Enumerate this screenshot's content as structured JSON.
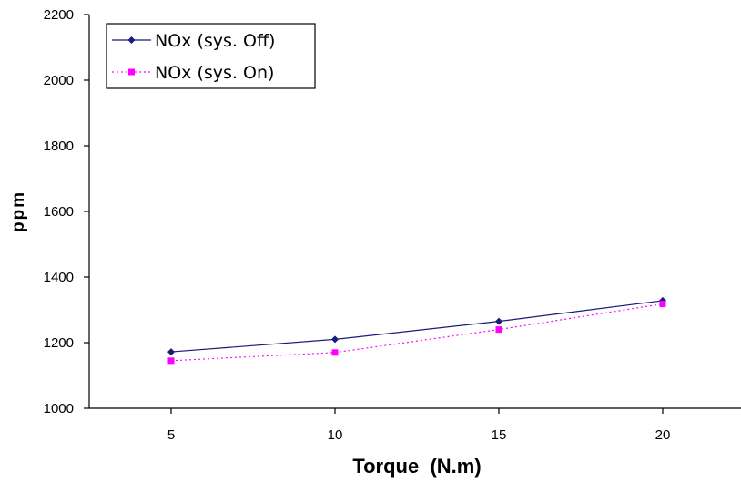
{
  "chart_data": {
    "type": "line",
    "title": "",
    "xlabel": "Torque  (N.m)",
    "ylabel": "ppm",
    "x": [
      5,
      10,
      15,
      20
    ],
    "x_ticks": [
      "5",
      "10",
      "15",
      "20"
    ],
    "xlim": [
      2.5,
      22.5
    ],
    "ylim": [
      1000,
      2200
    ],
    "y_ticks": [
      "1000",
      "1200",
      "1400",
      "1600",
      "1800",
      "2000",
      "2200"
    ],
    "grid": false,
    "legend_position": "top-left",
    "series": [
      {
        "name": "NOx (sys. Off)",
        "values": [
          1172,
          1210,
          1265,
          1328
        ],
        "color": "#1a1a7a",
        "marker": "diamond",
        "line": "solid"
      },
      {
        "name": "NOx (sys. On)",
        "values": [
          1145,
          1170,
          1240,
          1318
        ],
        "color": "#ff00ff",
        "marker": "square",
        "line": "dotted"
      }
    ]
  }
}
